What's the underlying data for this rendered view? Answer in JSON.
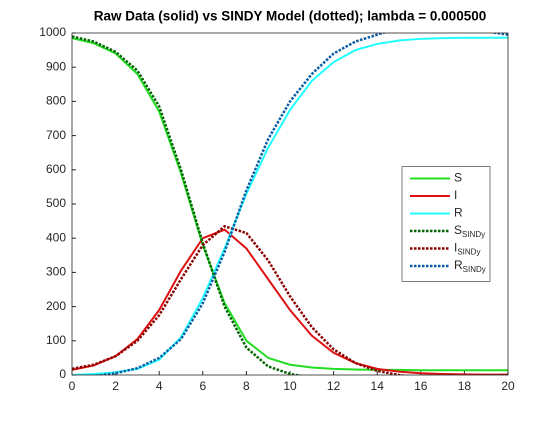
{
  "chart_data": {
    "type": "line",
    "title": "Raw Data (solid) vs SINDY Model (dotted); lambda = 0.000500",
    "x": [
      0,
      1,
      2,
      3,
      4,
      5,
      6,
      7,
      8,
      9,
      10,
      11,
      12,
      13,
      14,
      15,
      16,
      17,
      18,
      19,
      20
    ],
    "xlim": [
      0,
      20
    ],
    "xticks": [
      0,
      2,
      4,
      6,
      8,
      10,
      12,
      14,
      16,
      18,
      20
    ],
    "ylim": [
      0,
      1000
    ],
    "yticks": [
      0,
      100,
      200,
      300,
      400,
      500,
      600,
      700,
      800,
      900,
      1000
    ],
    "legend": "east",
    "series": [
      {
        "name": "S",
        "color": "#22dd22",
        "style": "solid",
        "values": [
          985,
          970,
          940,
          880,
          770,
          590,
          380,
          210,
          100,
          50,
          30,
          22,
          18,
          16,
          15,
          15,
          14,
          14,
          14,
          14,
          14
        ]
      },
      {
        "name": "I",
        "color": "#dd1111",
        "style": "solid",
        "values": [
          15,
          28,
          55,
          105,
          190,
          305,
          400,
          425,
          370,
          280,
          190,
          115,
          65,
          35,
          18,
          10,
          5,
          3,
          2,
          1,
          1
        ]
      },
      {
        "name": "R",
        "color": "#22ffff",
        "style": "solid",
        "values": [
          0,
          3,
          8,
          18,
          45,
          110,
          225,
          370,
          530,
          665,
          775,
          860,
          915,
          950,
          968,
          978,
          983,
          985,
          986,
          986,
          986
        ]
      },
      {
        "name": "S",
        "subscript": "SINDy",
        "color": "#006400",
        "style": "dotted",
        "values": [
          990,
          975,
          945,
          890,
          785,
          600,
          385,
          200,
          80,
          25,
          3,
          -8,
          null,
          null,
          null,
          null,
          null,
          null,
          null,
          null,
          null
        ]
      },
      {
        "name": "I",
        "subscript": "SINDy",
        "color": "#8b0000",
        "style": "dotted",
        "values": [
          18,
          30,
          55,
          100,
          175,
          280,
          380,
          435,
          415,
          335,
          230,
          140,
          75,
          35,
          12,
          0,
          -8,
          -8,
          -5,
          -2,
          0
        ]
      },
      {
        "name": "R",
        "subscript": "SINDy",
        "color": "#0a5ca8",
        "style": "dotted",
        "values": [
          -5,
          -3,
          5,
          20,
          50,
          105,
          210,
          360,
          540,
          690,
          800,
          880,
          940,
          975,
          995,
          1015,
          1020,
          1020,
          1015,
          1005,
          995
        ]
      }
    ]
  }
}
